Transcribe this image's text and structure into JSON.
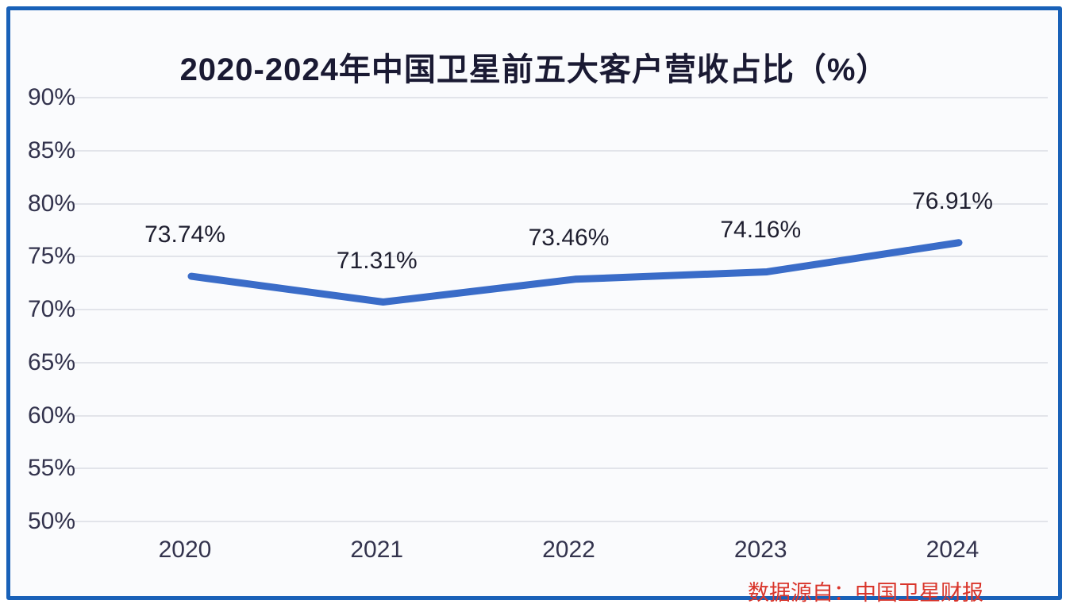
{
  "frame": {
    "border_color": "#1961b8",
    "background_color": "#fafbfd"
  },
  "chart_data": {
    "type": "line",
    "title": "2020-2024年中国卫星前五大客户营收占比（%）",
    "categories": [
      "2020",
      "2021",
      "2022",
      "2023",
      "2024"
    ],
    "series": [
      {
        "name": "前五大客户营收占比",
        "values": [
          73.74,
          71.31,
          73.46,
          74.16,
          76.91
        ]
      }
    ],
    "data_labels": [
      "73.74%",
      "71.31%",
      "73.46%",
      "74.16%",
      "76.91%"
    ],
    "y_ticks": [
      {
        "label": "90%",
        "value": 90
      },
      {
        "label": "85%",
        "value": 85
      },
      {
        "label": "80%",
        "value": 80
      },
      {
        "label": "75%",
        "value": 75
      },
      {
        "label": "70%",
        "value": 70
      },
      {
        "label": "65%",
        "value": 65
      },
      {
        "label": "60%",
        "value": 60
      },
      {
        "label": "55%",
        "value": 55
      },
      {
        "label": "50%",
        "value": 50
      }
    ],
    "ylim": [
      50,
      90
    ],
    "grid": true,
    "legend": "none",
    "line_color": "#3a6cc8",
    "source_note": "数据源自：中国卫星财报",
    "source_color": "#d9352b"
  }
}
